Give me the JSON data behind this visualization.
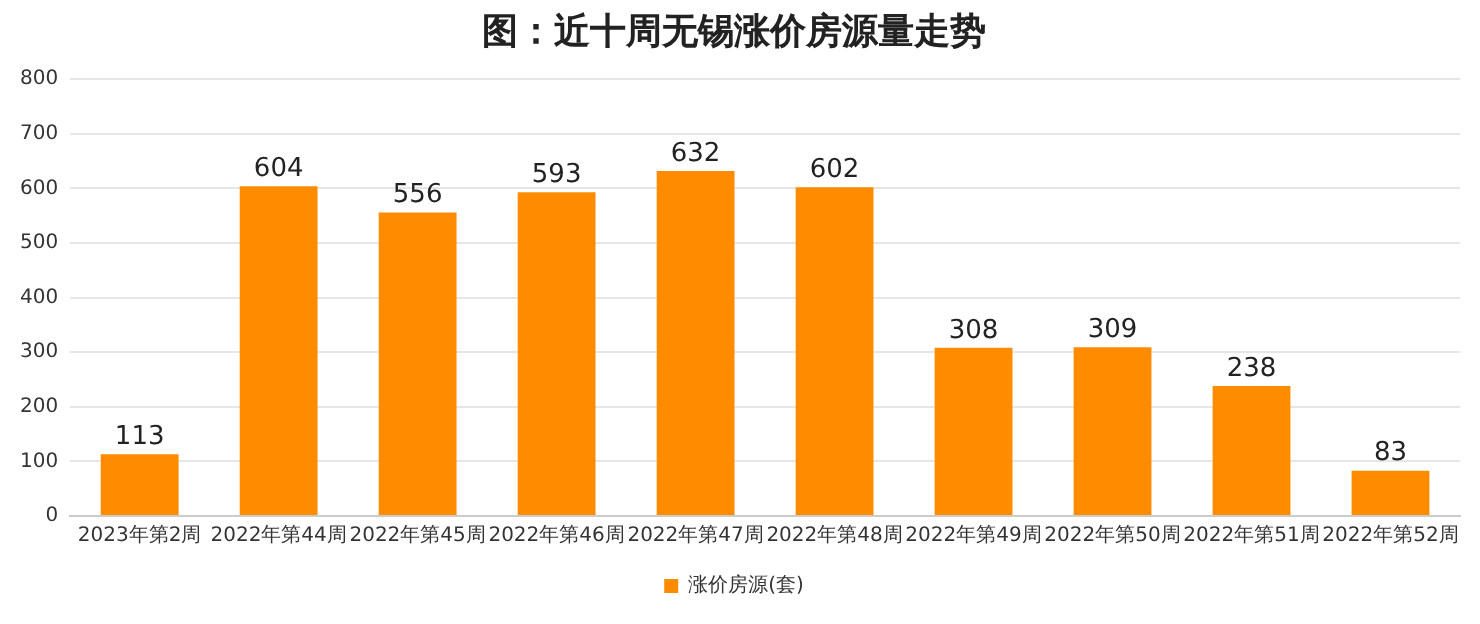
{
  "chart_data": {
    "type": "bar",
    "title": "图：近十周无锡涨价房源量走势",
    "categories": [
      "2023年第2周",
      "2022年第44周",
      "2022年第45周",
      "2022年第46周",
      "2022年第47周",
      "2022年第48周",
      "2022年第49周",
      "2022年第50周",
      "2022年第51周",
      "2022年第52周"
    ],
    "series": [
      {
        "name": "涨价房源(套)",
        "color": "#ff8c00",
        "values": [
          113,
          604,
          556,
          593,
          632,
          602,
          308,
          309,
          238,
          83
        ]
      }
    ],
    "ylim": [
      0,
      800
    ],
    "yticks": [
      0,
      100,
      200,
      300,
      400,
      500,
      600,
      700,
      800
    ],
    "grid": "y",
    "legend": "bottom",
    "data_labels": true
  }
}
